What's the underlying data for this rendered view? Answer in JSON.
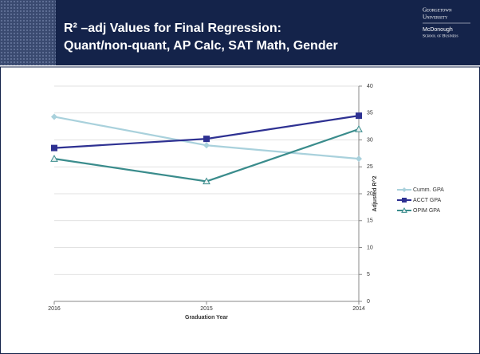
{
  "header": {
    "title": [
      "R² –adj Values for Final Regression:",
      "Quant/non-quant, AP Calc, SAT Math, Gender"
    ],
    "logo": [
      "Georgetown",
      "University",
      "McDonough",
      "School of Business"
    ]
  },
  "chart_data": {
    "type": "line",
    "categories": [
      "2016",
      "2015",
      "2014"
    ],
    "series": [
      {
        "name": "Cumm. GPA",
        "color": "#a9d1dc",
        "marker": "diamond",
        "values": [
          34.3,
          29,
          26.5
        ]
      },
      {
        "name": "ACCT GPA",
        "color": "#2e3192",
        "marker": "square",
        "values": [
          28.5,
          30.2,
          34.5
        ]
      },
      {
        "name": "OPIM GPA",
        "color": "#3a8c8c",
        "marker": "triangle",
        "values": [
          26.5,
          22.3,
          32
        ]
      }
    ],
    "ylim": [
      0,
      40
    ],
    "yticks": [
      0,
      5,
      10,
      15,
      20,
      25,
      30,
      35,
      40
    ],
    "ylabel": "Adjusted R^2",
    "xlabel": "Graduation Year",
    "grid": true,
    "legend": "right"
  }
}
